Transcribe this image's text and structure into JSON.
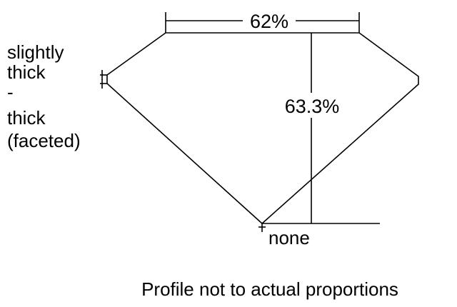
{
  "diagram": {
    "table_label": "62%",
    "depth_label": "63.3%",
    "girdle_label_lines": [
      "slightly",
      "thick",
      "-",
      "thick",
      "(faceted)"
    ],
    "culet_label": "none",
    "footer_note": "Profile not to actual proportions",
    "line_color": "#000000"
  }
}
